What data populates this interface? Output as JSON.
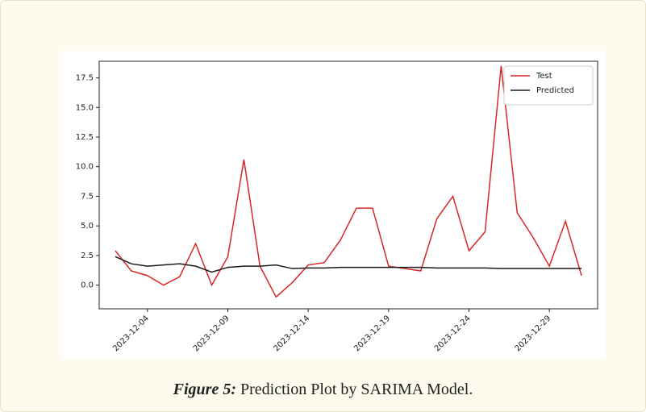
{
  "chart_data": {
    "type": "line",
    "x": [
      "2023-12-02",
      "2023-12-03",
      "2023-12-04",
      "2023-12-05",
      "2023-12-06",
      "2023-12-07",
      "2023-12-08",
      "2023-12-09",
      "2023-12-10",
      "2023-12-11",
      "2023-12-12",
      "2023-12-13",
      "2023-12-14",
      "2023-12-15",
      "2023-12-16",
      "2023-12-17",
      "2023-12-18",
      "2023-12-19",
      "2023-12-20",
      "2023-12-21",
      "2023-12-22",
      "2023-12-23",
      "2023-12-24",
      "2023-12-25",
      "2023-12-26",
      "2023-12-27",
      "2023-12-28",
      "2023-12-29",
      "2023-12-30",
      "2023-12-31"
    ],
    "series": [
      {
        "name": "Test",
        "color": "#d62728",
        "values": [
          2.9,
          1.2,
          0.8,
          0.0,
          0.7,
          3.5,
          0.0,
          2.4,
          10.6,
          1.6,
          -1.0,
          0.2,
          1.7,
          1.9,
          3.8,
          6.5,
          6.5,
          1.6,
          1.4,
          1.2,
          5.6,
          7.5,
          2.9,
          4.5,
          18.5,
          6.1,
          4.0,
          1.6,
          5.4,
          0.8
        ]
      },
      {
        "name": "Predicted",
        "color": "#1a1a1a",
        "values": [
          2.4,
          1.8,
          1.6,
          1.7,
          1.8,
          1.6,
          1.1,
          1.5,
          1.6,
          1.6,
          1.7,
          1.4,
          1.45,
          1.45,
          1.5,
          1.5,
          1.5,
          1.5,
          1.5,
          1.5,
          1.45,
          1.45,
          1.45,
          1.45,
          1.4,
          1.4,
          1.4,
          1.4,
          1.4,
          1.4
        ]
      }
    ],
    "xlim": [
      "2023-12-01",
      "2024-01-01"
    ],
    "xticks": [
      "2023-12-04",
      "2023-12-09",
      "2023-12-14",
      "2023-12-19",
      "2023-12-24",
      "2023-12-29"
    ],
    "ylim": [
      -2.0,
      18.9
    ],
    "yticks": [
      {
        "value": 0,
        "label": "0.0"
      },
      2.5,
      {
        "value": 5,
        "label": "5.0"
      },
      7.5,
      {
        "value": 10,
        "label": "10.0"
      },
      12.5,
      {
        "value": 15,
        "label": "15.0"
      },
      17.5
    ],
    "legend": "upper right"
  },
  "caption": {
    "label": "Figure 5:",
    "text": "Prediction Plot by SARIMA Model."
  }
}
